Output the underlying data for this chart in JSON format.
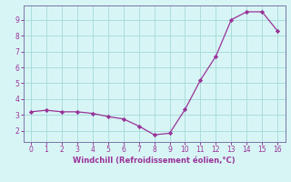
{
  "x": [
    0,
    1,
    2,
    3,
    4,
    5,
    6,
    7,
    8,
    9,
    10,
    11,
    12,
    13,
    14,
    15,
    16
  ],
  "y": [
    3.2,
    3.3,
    3.2,
    3.2,
    3.1,
    2.9,
    2.75,
    2.3,
    1.75,
    1.85,
    3.35,
    5.2,
    6.7,
    9.0,
    9.5,
    9.5,
    8.3
  ],
  "line_color": "#993399",
  "marker": "D",
  "marker_size": 2.2,
  "bg_color": "#d8f5f5",
  "grid_color": "#aadddd",
  "xlabel": "Windchill (Refroidissement éolien,°C)",
  "xlabel_color": "#993399",
  "tick_color": "#993399",
  "spine_color": "#7777aa",
  "ylim_min": 1.3,
  "ylim_max": 9.9,
  "xlim_min": -0.5,
  "xlim_max": 16.5,
  "yticks": [
    2,
    3,
    4,
    5,
    6,
    7,
    8,
    9
  ],
  "xticks": [
    0,
    1,
    2,
    3,
    4,
    5,
    6,
    7,
    8,
    9,
    10,
    11,
    12,
    13,
    14,
    15,
    16
  ],
  "tick_fontsize": 5.5,
  "xlabel_fontsize": 6.0
}
